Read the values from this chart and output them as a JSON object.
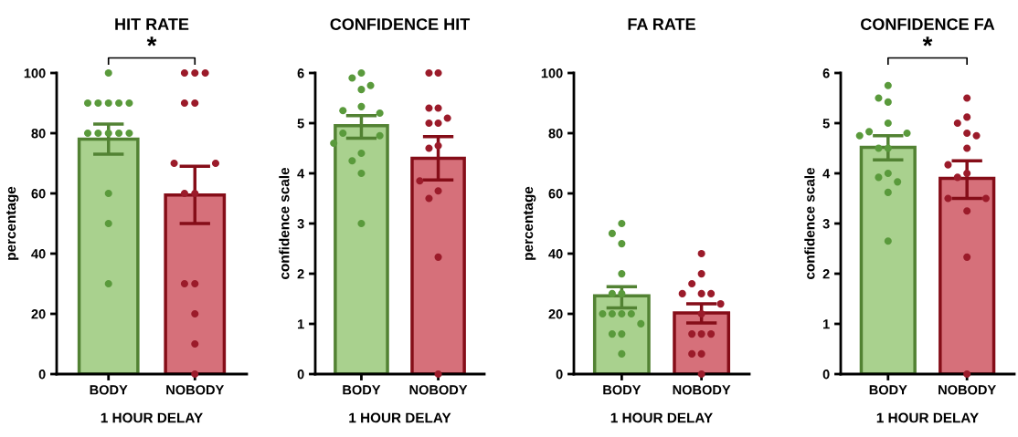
{
  "chart_data": [
    {
      "type": "bar",
      "title": "HIT RATE",
      "xlabel": "1 HOUR DELAY",
      "ylabel": "percentage",
      "categories": [
        "BODY",
        "NOBODY"
      ],
      "ylim": [
        0,
        100
      ],
      "yticks": [
        0,
        20,
        40,
        60,
        80,
        100
      ],
      "annotations": [
        "*"
      ],
      "series": [
        {
          "values": [
            78,
            59.5
          ],
          "colors": [
            "#a9d18e",
            "#d6707a"
          ],
          "errors": [
            [
              73,
              83
            ],
            [
              50,
              69
            ]
          ]
        },
        {
          "type": "scatter",
          "color": "#5a9a3c",
          "x": [
            "BODY",
            "BODY",
            "BODY",
            "BODY",
            "BODY",
            "BODY",
            "BODY",
            "BODY",
            "BODY",
            "BODY",
            "BODY",
            "BODY",
            "BODY",
            "BODY"
          ],
          "values": [
            100,
            90,
            90,
            90,
            90,
            90,
            80,
            80,
            80,
            80,
            80,
            60,
            50,
            30
          ]
        },
        {
          "type": "scatter",
          "color": "#9b1b2a",
          "x": [
            "NOBODY",
            "NOBODY",
            "NOBODY",
            "NOBODY",
            "NOBODY",
            "NOBODY",
            "NOBODY",
            "NOBODY",
            "NOBODY",
            "NOBODY",
            "NOBODY",
            "NOBODY",
            "NOBODY",
            "NOBODY"
          ],
          "values": [
            100,
            100,
            100,
            90,
            90,
            70,
            70,
            60,
            60,
            30,
            30,
            20,
            10,
            0
          ]
        }
      ]
    },
    {
      "type": "bar",
      "title": "CONFIDENCE HIT",
      "xlabel": "1 HOUR DELAY",
      "ylabel": "confidence scale",
      "categories": [
        "BODY",
        "NOBODY"
      ],
      "ylim": [
        0,
        6
      ],
      "yticks": [
        0,
        1,
        2,
        3,
        4,
        5,
        6
      ],
      "series": [
        {
          "values": [
            4.95,
            4.3
          ],
          "colors": [
            "#a9d18e",
            "#d6707a"
          ],
          "errors": [
            [
              4.7,
              5.15
            ],
            [
              3.87,
              4.73
            ]
          ]
        },
        {
          "type": "scatter",
          "color": "#5a9a3c",
          "x": [
            "BODY",
            "BODY",
            "BODY",
            "BODY",
            "BODY",
            "BODY",
            "BODY",
            "BODY",
            "BODY",
            "BODY",
            "BODY",
            "BODY",
            "BODY",
            "BODY"
          ],
          "values": [
            6,
            5.9,
            5.75,
            5.67,
            5.33,
            5.25,
            5.2,
            4.8,
            4.75,
            4.6,
            4.4,
            4.25,
            4,
            3
          ]
        },
        {
          "type": "scatter",
          "color": "#9b1b2a",
          "x": [
            "NOBODY",
            "NOBODY",
            "NOBODY",
            "NOBODY",
            "NOBODY",
            "NOBODY",
            "NOBODY",
            "NOBODY",
            "NOBODY",
            "NOBODY",
            "NOBODY",
            "NOBODY",
            "NOBODY",
            "NOBODY"
          ],
          "values": [
            6,
            6,
            5.3,
            5.3,
            5.1,
            5,
            5,
            4.55,
            4.5,
            3.85,
            3.65,
            3.5,
            2.33,
            0
          ]
        }
      ]
    },
    {
      "type": "bar",
      "title": "FA RATE",
      "xlabel": "1 HOUR DELAY",
      "ylabel": "percentage",
      "categories": [
        "BODY",
        "NOBODY"
      ],
      "ylim": [
        0,
        100
      ],
      "yticks": [
        0,
        20,
        40,
        60,
        80,
        100
      ],
      "series": [
        {
          "values": [
            26,
            20.3
          ],
          "colors": [
            "#a9d18e",
            "#d6707a"
          ],
          "errors": [
            [
              22,
              29
            ],
            [
              17,
              23.3
            ]
          ]
        },
        {
          "type": "scatter",
          "color": "#5a9a3c",
          "x": [
            "BODY",
            "BODY",
            "BODY",
            "BODY",
            "BODY",
            "BODY",
            "BODY",
            "BODY",
            "BODY",
            "BODY",
            "BODY",
            "BODY",
            "BODY",
            "BODY"
          ],
          "values": [
            50,
            46.7,
            43.3,
            33.3,
            26.7,
            26.7,
            20,
            20,
            20,
            20,
            16.7,
            13.3,
            13.3,
            6.7
          ]
        },
        {
          "type": "scatter",
          "color": "#9b1b2a",
          "x": [
            "NOBODY",
            "NOBODY",
            "NOBODY",
            "NOBODY",
            "NOBODY",
            "NOBODY",
            "NOBODY",
            "NOBODY",
            "NOBODY",
            "NOBODY",
            "NOBODY",
            "NOBODY",
            "NOBODY",
            "NOBODY"
          ],
          "values": [
            40,
            33.3,
            30,
            26.7,
            26.7,
            26.7,
            23.3,
            20,
            13.3,
            13.3,
            13.3,
            6.7,
            6.7,
            0
          ]
        }
      ]
    },
    {
      "type": "bar",
      "title": "CONFIDENCE FA",
      "xlabel": "1 HOUR DELAY",
      "ylabel": "confidence scale",
      "categories": [
        "BODY",
        "NOBODY"
      ],
      "ylim": [
        0,
        6
      ],
      "yticks": [
        0,
        1,
        2,
        3,
        4,
        5,
        6
      ],
      "annotations": [
        "*"
      ],
      "series": [
        {
          "values": [
            4.52,
            3.9
          ],
          "colors": [
            "#a9d18e",
            "#d6707a"
          ],
          "errors": [
            [
              4.27,
              4.75
            ],
            [
              3.5,
              4.25
            ]
          ]
        },
        {
          "type": "scatter",
          "color": "#5a9a3c",
          "x": [
            "BODY",
            "BODY",
            "BODY",
            "BODY",
            "BODY",
            "BODY",
            "BODY",
            "BODY",
            "BODY",
            "BODY",
            "BODY",
            "BODY",
            "BODY",
            "BODY"
          ],
          "values": [
            5.75,
            5.5,
            5.42,
            5,
            4.83,
            4.8,
            4.75,
            4.5,
            4.5,
            4,
            3.92,
            3.83,
            3.62,
            2.65
          ]
        },
        {
          "type": "scatter",
          "color": "#9b1b2a",
          "x": [
            "NOBODY",
            "NOBODY",
            "NOBODY",
            "NOBODY",
            "NOBODY",
            "NOBODY",
            "NOBODY",
            "NOBODY",
            "NOBODY",
            "NOBODY",
            "NOBODY",
            "NOBODY",
            "NOBODY",
            "NOBODY"
          ],
          "values": [
            5.5,
            5.12,
            5,
            4.8,
            4.75,
            4.5,
            4.17,
            4,
            3.92,
            3.5,
            3.5,
            3.25,
            2.33,
            0
          ]
        }
      ]
    }
  ]
}
